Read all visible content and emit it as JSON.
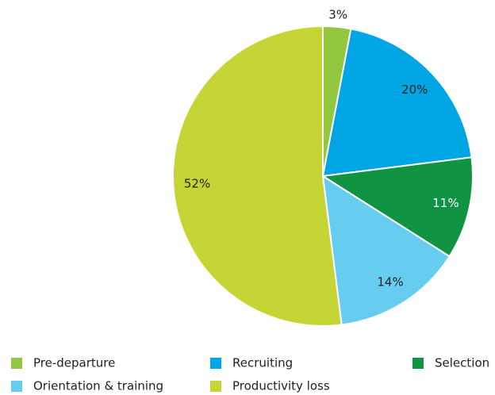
{
  "chart_data": {
    "type": "pie",
    "categories": [
      "Pre-departure",
      "Recruiting",
      "Selection",
      "Orientation & training",
      "Productivity loss"
    ],
    "values": [
      3,
      20,
      11,
      14,
      52
    ],
    "value_labels": [
      "3%",
      "20%",
      "11%",
      "14%",
      "52%"
    ],
    "colors": [
      "#93c83e",
      "#00a5e3",
      "#109444",
      "#66ccf0",
      "#c4d535"
    ],
    "legend": "bottom"
  }
}
